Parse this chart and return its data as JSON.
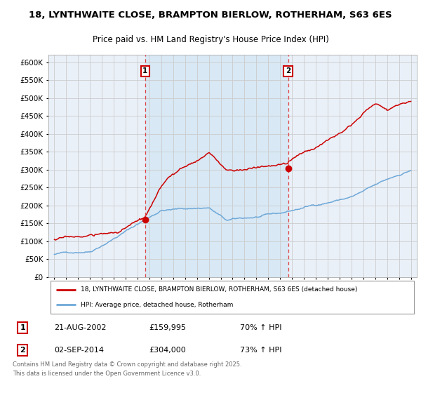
{
  "title_line1": "18, LYNTHWAITE CLOSE, BRAMPTON BIERLOW, ROTHERHAM, S63 6ES",
  "title_line2": "Price paid vs. HM Land Registry's House Price Index (HPI)",
  "legend_red": "18, LYNTHWAITE CLOSE, BRAMPTON BIERLOW, ROTHERHAM, S63 6ES (detached house)",
  "legend_blue": "HPI: Average price, detached house, Rotherham",
  "annotation1_date": "21-AUG-2002",
  "annotation1_price": "£159,995",
  "annotation1_hpi": "70% ↑ HPI",
  "annotation2_date": "02-SEP-2014",
  "annotation2_price": "£304,000",
  "annotation2_hpi": "73% ↑ HPI",
  "footer": "Contains HM Land Registry data © Crown copyright and database right 2025.\nThis data is licensed under the Open Government Licence v3.0.",
  "ylim": [
    0,
    620000
  ],
  "yticks": [
    0,
    50000,
    100000,
    150000,
    200000,
    250000,
    300000,
    350000,
    400000,
    450000,
    500000,
    550000,
    600000
  ],
  "year_start": 1995,
  "year_end": 2025,
  "vline1_year": 2002.64,
  "vline2_year": 2014.67,
  "dot1_year": 2002.64,
  "dot1_value": 159995,
  "dot2_year": 2014.67,
  "dot2_value": 304000,
  "red_color": "#cc0000",
  "blue_color": "#6ea8d8",
  "bg_shade_color": "#d8e8f4",
  "vline_color": "#dd4444",
  "grid_color": "#cccccc",
  "background_color": "#ffffff",
  "plot_bg_color": "#eaf0f8"
}
